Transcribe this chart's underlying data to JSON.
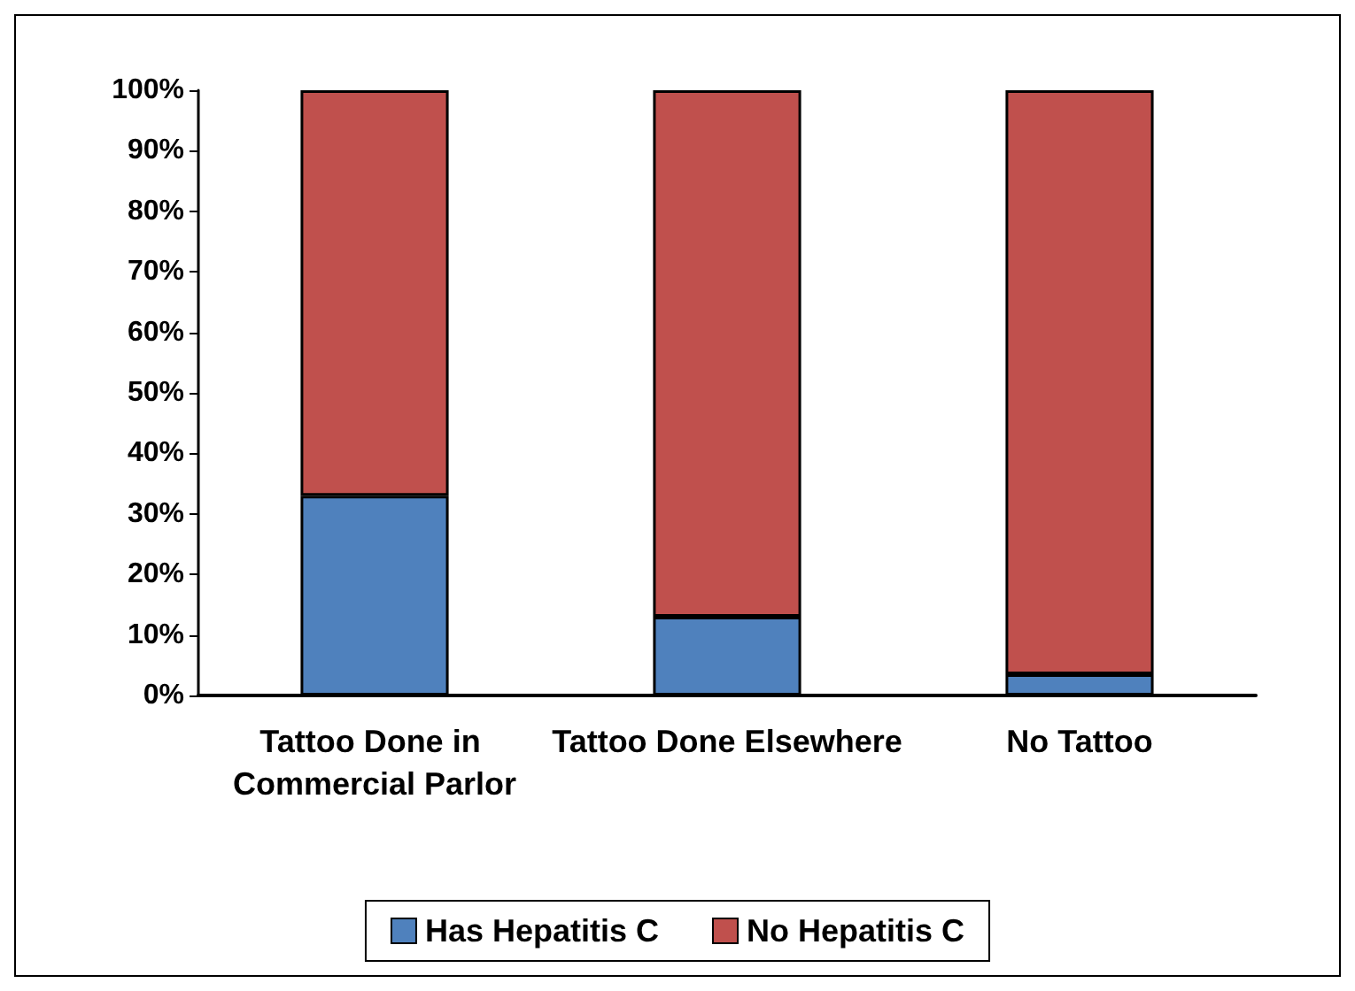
{
  "chart_data": {
    "type": "bar",
    "stacked": true,
    "categories": [
      "Tattoo Done in Commercial Parlor",
      "Tattoo Done Elsewhere",
      "No Tattoo"
    ],
    "series": [
      {
        "name": "Has Hepatitis C",
        "color": "#4f81bd",
        "values": [
          33,
          13,
          3.5
        ]
      },
      {
        "name": "No Hepatitis C",
        "color": "#c0504d",
        "values": [
          67,
          87,
          96.5
        ]
      }
    ],
    "ylim": [
      0,
      100
    ],
    "yticks": [
      {
        "value": 0,
        "label": "0%"
      },
      {
        "value": 10,
        "label": "10%"
      },
      {
        "value": 20,
        "label": "20%"
      },
      {
        "value": 30,
        "label": "30%"
      },
      {
        "value": 40,
        "label": "40%"
      },
      {
        "value": 50,
        "label": "50%"
      },
      {
        "value": 60,
        "label": "60%"
      },
      {
        "value": 70,
        "label": "70%"
      },
      {
        "value": 80,
        "label": "80%"
      },
      {
        "value": 90,
        "label": "90%"
      },
      {
        "value": 100,
        "label": "100%"
      }
    ],
    "grid": false,
    "legend": "bottom"
  }
}
